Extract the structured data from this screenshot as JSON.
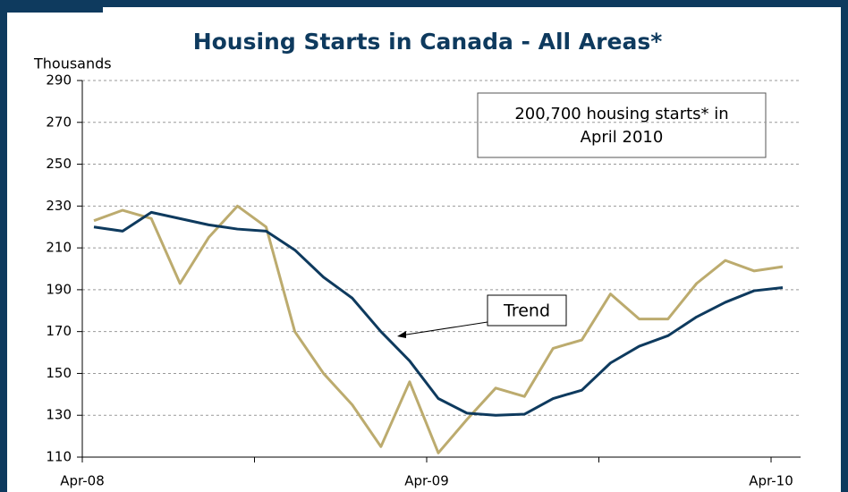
{
  "chart_data": {
    "type": "line",
    "title": "Housing Starts in Canada - All Areas*",
    "y_label": "Thousands",
    "categories": [
      "Apr-08",
      null,
      null,
      null,
      null,
      null,
      null,
      null,
      null,
      null,
      null,
      null,
      "Apr-09",
      null,
      null,
      null,
      null,
      null,
      null,
      null,
      null,
      null,
      null,
      null,
      "Apr-10"
    ],
    "series": [
      {
        "color": "#bcab6e",
        "values": [
          223,
          228,
          224,
          193,
          215,
          230,
          220,
          170,
          150,
          135,
          115,
          146,
          112,
          128,
          143,
          139,
          162,
          166,
          188,
          176,
          176,
          193,
          204,
          199,
          201
        ]
      },
      {
        "name": "Trend",
        "color": "#0e3a5e",
        "values": [
          220,
          218,
          227,
          224,
          221,
          219,
          218,
          209,
          196,
          186,
          170,
          156,
          138,
          131,
          130,
          130.5,
          138,
          142,
          155,
          163,
          168,
          177,
          184,
          189.5,
          191
        ]
      }
    ],
    "ylim": [
      110,
      290
    ],
    "yticks": [
      110,
      130,
      150,
      170,
      190,
      210,
      230,
      250,
      270,
      290
    ],
    "grid": true,
    "annotation_lines": [
      "200,700 housing starts* in",
      "April 2010"
    ]
  }
}
